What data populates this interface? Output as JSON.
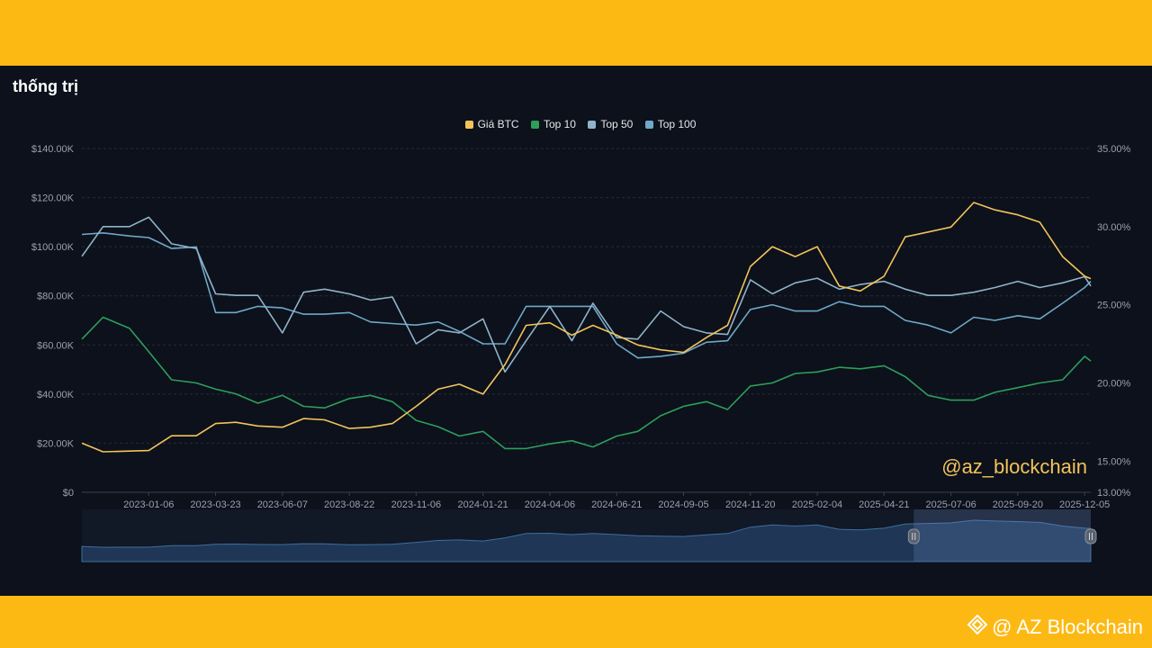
{
  "page": {
    "title": "thống trị",
    "watermark": "@az_blockchain",
    "brand": "@ AZ Blockchain"
  },
  "colors": {
    "band": "#FDB913",
    "panel": "#0C111B",
    "btc": "#F3C35A",
    "top10": "#2E9E5B",
    "top50": "#8FB3C9",
    "top100": "#6FA8C8"
  },
  "icons": {
    "brand": "binance-diamond-icon"
  },
  "chart_data": {
    "type": "line",
    "legend": [
      "Giá BTC",
      "Top 10",
      "Top 50",
      "Top 100"
    ],
    "legend_placement": "top-center",
    "x_ticks": [
      "2023-01-06",
      "2023-03-23",
      "2023-06-07",
      "2023-08-22",
      "2023-11-06",
      "2024-01-21",
      "2024-04-06",
      "2024-06-21",
      "2024-09-05",
      "2024-11-20",
      "2025-02-04",
      "2025-04-21",
      "2025-07-06",
      "2025-09-20",
      "2025-12-05"
    ],
    "y_left_ticks": [
      "$0",
      "$20.00K",
      "$40.00K",
      "$60.00K",
      "$80.00K",
      "$100.00K",
      "$120.00K",
      "$140.00K"
    ],
    "y_right_ticks": [
      "13.00%",
      "15.00%",
      "20.00%",
      "25.00%",
      "30.00%",
      "35.00%"
    ],
    "ylim_left": [
      0,
      140000
    ],
    "ylim_right": [
      13,
      35
    ],
    "grid": true,
    "x": [
      "2022-10-22",
      "2022-11-15",
      "2022-12-15",
      "2023-01-06",
      "2023-02-01",
      "2023-03-01",
      "2023-03-23",
      "2023-04-15",
      "2023-05-10",
      "2023-06-07",
      "2023-07-01",
      "2023-07-25",
      "2023-08-22",
      "2023-09-15",
      "2023-10-10",
      "2023-11-06",
      "2023-12-01",
      "2023-12-25",
      "2024-01-21",
      "2024-02-15",
      "2024-03-10",
      "2024-04-06",
      "2024-05-01",
      "2024-05-25",
      "2024-06-21",
      "2024-07-15",
      "2024-08-10",
      "2024-09-05",
      "2024-10-01",
      "2024-10-25",
      "2024-11-20",
      "2024-12-15",
      "2025-01-10",
      "2025-02-04",
      "2025-03-01",
      "2025-03-25",
      "2025-04-21",
      "2025-05-15",
      "2025-06-10",
      "2025-07-06",
      "2025-08-01",
      "2025-08-25",
      "2025-09-20",
      "2025-10-15",
      "2025-11-10",
      "2025-12-05",
      "2025-12-12"
    ],
    "series": [
      {
        "name": "Giá BTC",
        "axis": "left",
        "values": [
          20000,
          16500,
          16800,
          17000,
          23000,
          23000,
          28000,
          28500,
          27000,
          26500,
          30000,
          29500,
          26000,
          26500,
          28000,
          35000,
          42000,
          44000,
          40000,
          52000,
          68000,
          69000,
          64000,
          68000,
          64000,
          60000,
          58000,
          57000,
          63000,
          68000,
          92000,
          100000,
          96000,
          100000,
          84000,
          82000,
          88000,
          104000,
          106000,
          108000,
          118000,
          115000,
          113000,
          110000,
          96000,
          88000,
          87000
        ]
      },
      {
        "name": "Top 10",
        "axis": "right",
        "values": [
          22.8,
          24.2,
          23.5,
          22.0,
          20.2,
          20.0,
          19.6,
          19.3,
          18.7,
          19.2,
          18.5,
          18.4,
          19.0,
          19.2,
          18.8,
          17.6,
          17.2,
          16.6,
          16.9,
          15.8,
          15.8,
          16.1,
          16.3,
          15.9,
          16.6,
          16.9,
          17.9,
          18.5,
          18.8,
          18.3,
          19.8,
          20.0,
          20.6,
          20.7,
          21.0,
          20.9,
          21.1,
          20.4,
          19.2,
          18.9,
          18.9,
          19.4,
          19.7,
          20.0,
          20.2,
          21.7,
          21.4
        ]
      },
      {
        "name": "Top 50",
        "axis": "right",
        "values": [
          28.1,
          30.0,
          30.0,
          30.6,
          28.9,
          28.6,
          25.7,
          25.6,
          25.6,
          23.2,
          25.8,
          26.0,
          25.7,
          25.3,
          25.5,
          22.5,
          23.4,
          23.2,
          24.1,
          20.7,
          22.7,
          24.9,
          22.7,
          25.1,
          22.9,
          22.8,
          24.6,
          23.6,
          23.2,
          23.1,
          26.6,
          25.7,
          26.4,
          26.7,
          26.0,
          26.3,
          26.5,
          26.0,
          25.6,
          25.6,
          25.8,
          26.1,
          26.5,
          26.1,
          26.4,
          26.8,
          26.2
        ]
      },
      {
        "name": "Top 100",
        "axis": "right",
        "values": [
          29.5,
          29.6,
          29.4,
          29.3,
          28.6,
          28.7,
          24.5,
          24.5,
          24.9,
          24.8,
          24.4,
          24.4,
          24.5,
          23.9,
          23.8,
          23.7,
          23.9,
          23.3,
          22.5,
          22.5,
          24.9,
          24.9,
          24.9,
          24.9,
          22.5,
          21.6,
          21.7,
          21.9,
          22.6,
          22.7,
          24.7,
          25.0,
          24.6,
          24.6,
          25.2,
          24.9,
          24.9,
          24.0,
          23.7,
          23.2,
          24.2,
          24.0,
          24.3,
          24.1,
          25.1,
          26.1,
          26.5
        ]
      }
    ]
  }
}
